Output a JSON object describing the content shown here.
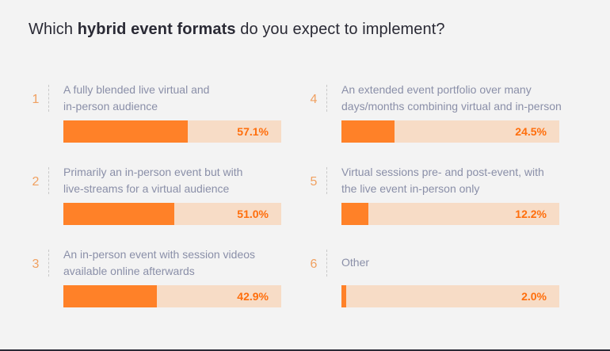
{
  "title": {
    "pre": "Which ",
    "bold": "hybrid event formats",
    "post": " do you expect to implement?"
  },
  "colors": {
    "fill": "#ff8128",
    "track": "#f7dcc6",
    "percent": "#ff6e0c",
    "number": "#f0a060"
  },
  "chart_data": {
    "type": "bar",
    "orientation": "horizontal",
    "xlim": [
      0,
      100
    ],
    "categories": [
      "A fully blended live virtual and in-person audience",
      "Primarily an in-person event but with live-streams for a virtual audience",
      "An in-person event with session videos available online afterwards",
      "An extended event portfolio over many days/months combining virtual and in-person",
      "Virtual sessions pre- and post-event, with the live event in-person only",
      "Other"
    ],
    "values": [
      57.1,
      51.0,
      42.9,
      24.5,
      12.2,
      2.0
    ]
  },
  "items": [
    {
      "num": "1",
      "line1": "A fully blended live virtual and",
      "line2": "in-person audience",
      "pct": "57.1%"
    },
    {
      "num": "2",
      "line1": "Primarily an in-person event but with",
      "line2": "live-streams for a virtual audience",
      "pct": "51.0%"
    },
    {
      "num": "3",
      "line1": "An in-person event with session videos",
      "line2": "available online afterwards",
      "pct": "42.9%"
    },
    {
      "num": "4",
      "line1": "An extended event portfolio over many",
      "line2": "days/months combining virtual and in-person",
      "pct": "24.5%"
    },
    {
      "num": "5",
      "line1": "Virtual sessions pre- and post-event, with",
      "line2": "the live event in-person only",
      "pct": "12.2%"
    },
    {
      "num": "6",
      "line1": "Other",
      "line2": "",
      "pct": "2.0%"
    }
  ]
}
